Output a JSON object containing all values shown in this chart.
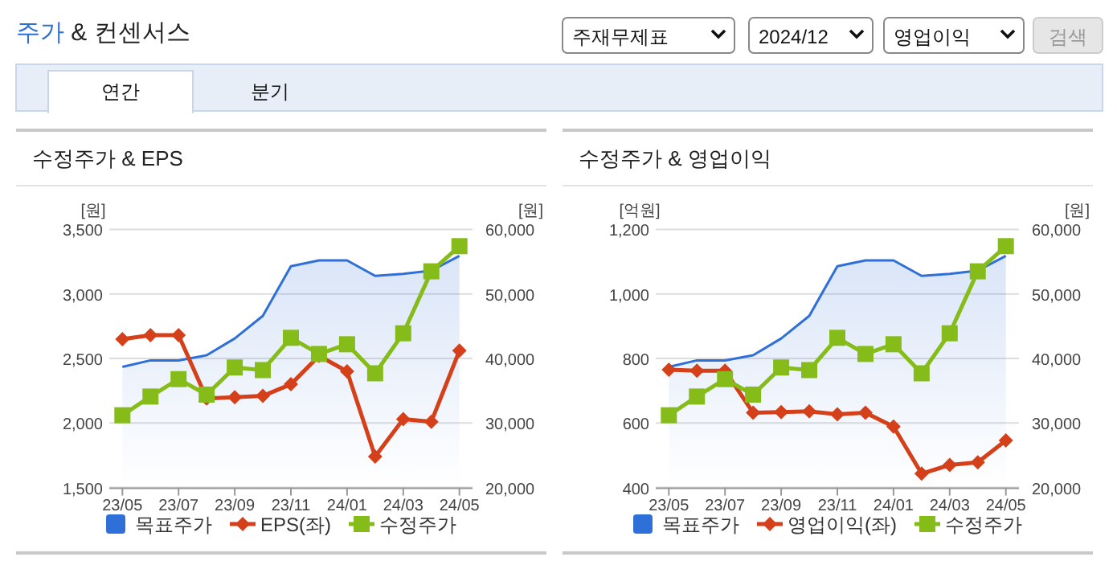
{
  "chart_data": [
    {
      "type": "other",
      "title": "주가 & 컨센서스",
      "annotations": [
        "주재무제표",
        "2024/12",
        "영업이익",
        "검색",
        "연간",
        "분기"
      ]
    },
    {
      "type": "line",
      "title": "수정주가 & EPS",
      "ylabel": "[원]",
      "y2label": "[원]",
      "grid": "y",
      "legend": "bottom",
      "x": [
        "2023-05",
        "2023-06",
        "2023-07",
        "2023-08",
        "2023-09",
        "2023-10",
        "2023-11",
        "2023-12",
        "2024-01",
        "2024-02",
        "2024-03",
        "2024-04",
        "2024-05"
      ],
      "xlim": [
        "2023-04-17",
        "2024-05-15"
      ],
      "xticks": [
        {
          "value": "2023-05",
          "label": "23/05"
        },
        {
          "value": "2023-07",
          "label": "23/07"
        },
        {
          "value": "2023-09",
          "label": "23/09"
        },
        {
          "value": "2023-11",
          "label": "23/11"
        },
        {
          "value": "2024-01",
          "label": "24/01"
        },
        {
          "value": "2024-03",
          "label": "24/03"
        },
        {
          "value": "2024-05",
          "label": "24/05"
        }
      ],
      "ylim": [
        1500,
        3500
      ],
      "yticks": [
        {
          "value": 1500,
          "label": "1,500"
        },
        {
          "value": 2000,
          "label": "2,000"
        },
        {
          "value": 2500,
          "label": "2,500"
        },
        {
          "value": 3000,
          "label": "3,000"
        },
        {
          "value": 3500,
          "label": "3,500"
        }
      ],
      "y2lim": [
        20000,
        60000
      ],
      "y2ticks": [
        {
          "value": 20000,
          "label": "20,000"
        },
        {
          "value": 30000,
          "label": "30,000"
        },
        {
          "value": 40000,
          "label": "40,000"
        },
        {
          "value": 50000,
          "label": "50,000"
        },
        {
          "value": 60000,
          "label": "60,000"
        }
      ],
      "series": [
        {
          "name": "목표주가",
          "type": "area",
          "axis": "y2",
          "color": "#2f6fd8",
          "values": [
            38700,
            39700,
            39700,
            40500,
            43100,
            46600,
            54300,
            55200,
            55200,
            52800,
            53100,
            53600,
            55900
          ]
        },
        {
          "name": "EPS(좌)",
          "color": "#d4401a",
          "marker": "diamond",
          "values": [
            2650,
            2680,
            2680,
            2190,
            2200,
            2210,
            2300,
            2520,
            2400,
            1740,
            2030,
            2010,
            2560
          ]
        },
        {
          "name": "수정주가",
          "axis": "y2",
          "color": "#86bc1a",
          "marker": "square",
          "values": [
            31200,
            34100,
            36800,
            34400,
            38600,
            38200,
            43200,
            40700,
            42200,
            37700,
            43900,
            53500,
            57400
          ]
        }
      ]
    },
    {
      "type": "line",
      "title": "수정주가 & 영업이익",
      "ylabel": "[억원]",
      "y2label": "[원]",
      "grid": "y",
      "legend": "bottom",
      "x": [
        "2023-05",
        "2023-06",
        "2023-07",
        "2023-08",
        "2023-09",
        "2023-10",
        "2023-11",
        "2023-12",
        "2024-01",
        "2024-02",
        "2024-03",
        "2024-04",
        "2024-05"
      ],
      "xlim": [
        "2023-04-17",
        "2024-05-15"
      ],
      "xticks": [
        {
          "value": "2023-05",
          "label": "23/05"
        },
        {
          "value": "2023-07",
          "label": "23/07"
        },
        {
          "value": "2023-09",
          "label": "23/09"
        },
        {
          "value": "2023-11",
          "label": "23/11"
        },
        {
          "value": "2024-01",
          "label": "24/01"
        },
        {
          "value": "2024-03",
          "label": "24/03"
        },
        {
          "value": "2024-05",
          "label": "24/05"
        }
      ],
      "ylim": [
        400,
        1200
      ],
      "yticks": [
        400,
        600,
        800,
        {
          "value": 1000,
          "label": "1,000"
        },
        {
          "value": 1200,
          "label": "1,200"
        }
      ],
      "y2lim": [
        20000,
        60000
      ],
      "y2ticks": [
        {
          "value": 20000,
          "label": "20,000"
        },
        {
          "value": 30000,
          "label": "30,000"
        },
        {
          "value": 40000,
          "label": "40,000"
        },
        {
          "value": 50000,
          "label": "50,000"
        },
        {
          "value": 60000,
          "label": "60,000"
        }
      ],
      "series": [
        {
          "name": "목표주가",
          "type": "area",
          "axis": "y2",
          "color": "#2f6fd8",
          "values": [
            38700,
            39700,
            39700,
            40500,
            43100,
            46600,
            54300,
            55200,
            55200,
            52800,
            53100,
            53600,
            55900
          ]
        },
        {
          "name": "영업이익(좌)",
          "color": "#d4401a",
          "marker": "diamond",
          "values": [
            765,
            762,
            762,
            632,
            634,
            636,
            627,
            632,
            589,
            443,
            470,
            478,
            546
          ]
        },
        {
          "name": "수정주가",
          "axis": "y2",
          "color": "#86bc1a",
          "marker": "square",
          "values": [
            31200,
            34100,
            36800,
            34400,
            38600,
            38200,
            43200,
            40700,
            42200,
            37700,
            43900,
            53500,
            57400
          ]
        }
      ]
    }
  ]
}
